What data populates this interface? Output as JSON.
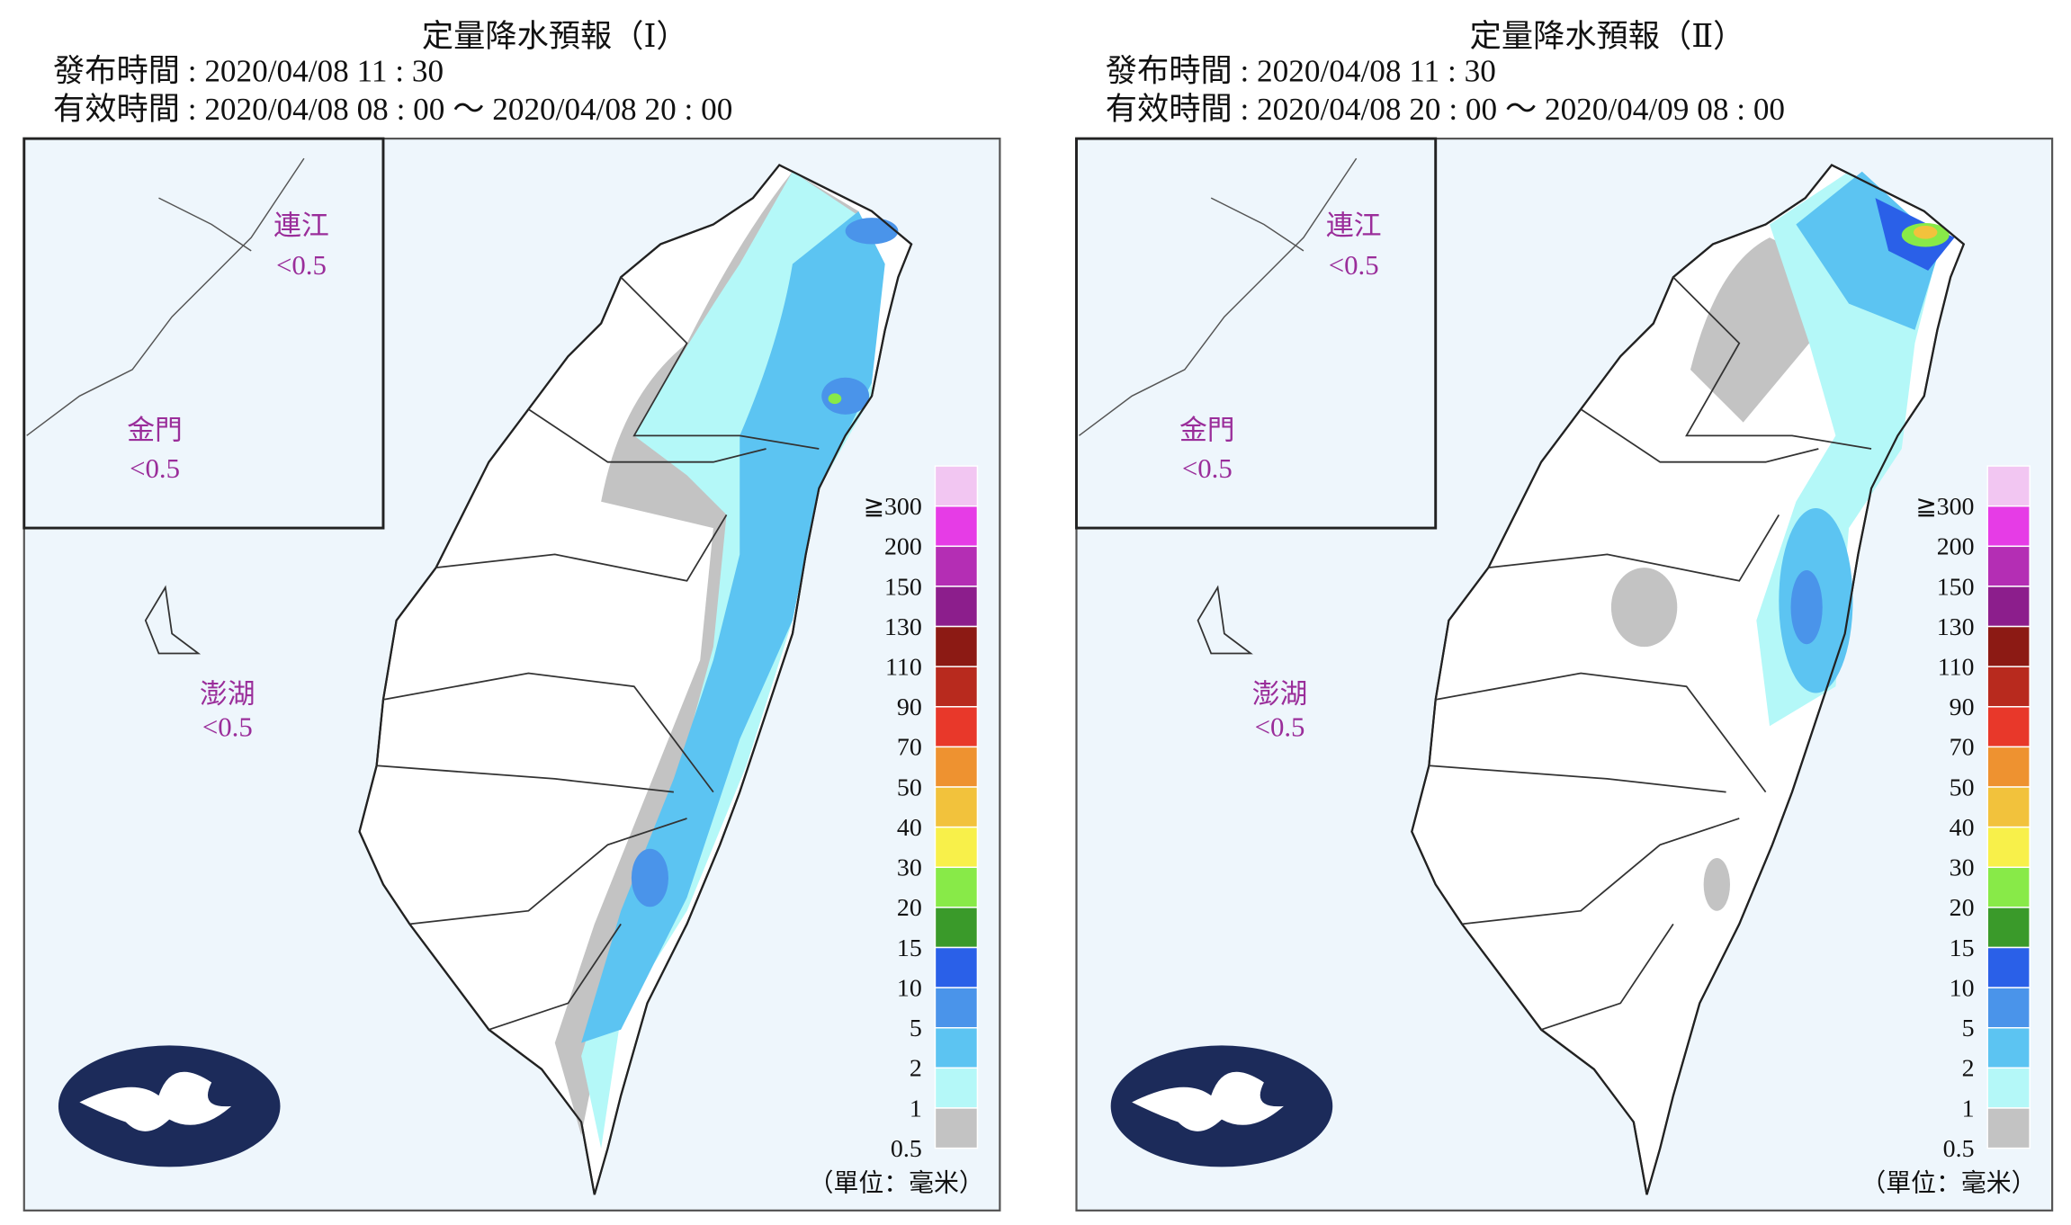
{
  "panels": [
    {
      "title": "定量降水預報（Ⅰ）",
      "issued": "發布時間 : 2020/04/08 11 : 30",
      "valid": "有效時間 : 2020/04/08 08 : 00 ～ 2020/04/08 20 : 00",
      "regions": [
        {
          "name": "連江",
          "value": "<0.5"
        },
        {
          "name": "金門",
          "value": "<0.5"
        },
        {
          "name": "澎湖",
          "value": "<0.5"
        }
      ]
    },
    {
      "title": "定量降水預報（Ⅱ）",
      "issued": "發布時間 : 2020/04/08 11 : 30",
      "valid": "有效時間 : 2020/04/08 20 : 00 ～ 2020/04/09 08 : 00",
      "regions": [
        {
          "name": "連江",
          "value": "<0.5"
        },
        {
          "name": "金門",
          "value": "<0.5"
        },
        {
          "name": "澎湖",
          "value": "<0.5"
        }
      ]
    }
  ],
  "legend": {
    "labels": [
      "≧300",
      "200",
      "150",
      "130",
      "110",
      "90",
      "70",
      "50",
      "40",
      "30",
      "20",
      "15",
      "10",
      "5",
      "2",
      "1",
      "0.5"
    ],
    "colors": [
      "#f2c6f2",
      "#e63ce6",
      "#b42eb4",
      "#8c1e8c",
      "#8c1a14",
      "#b82a1e",
      "#e8382a",
      "#ee9230",
      "#f2c23c",
      "#f8f04a",
      "#88ea48",
      "#3a9a2a",
      "#2a60e8",
      "#4a94ea",
      "#5cc4f2",
      "#b4f8f8",
      "#c3c3c3"
    ],
    "unit": "（單位：毫米）"
  }
}
